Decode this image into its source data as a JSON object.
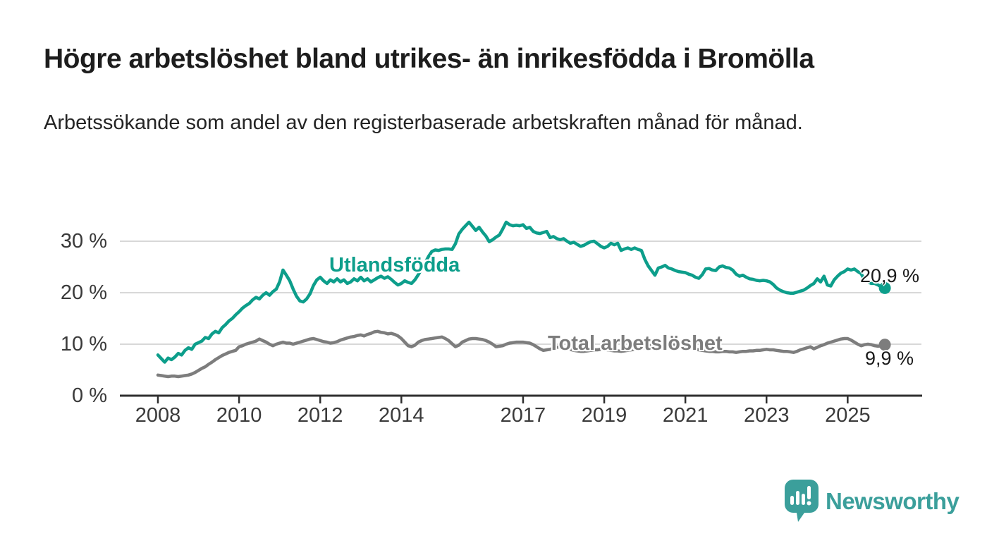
{
  "header": {
    "title": "Högre arbetslöshet bland utrikes- än inrikesfödda i Bromölla",
    "subtitle": "Arbetssökande som andel av den registerbaserade arbetskraften månad för månad."
  },
  "footer": {
    "brand": "Newsworthy",
    "brand_color": "#3b9f9b"
  },
  "chart_data": {
    "type": "line",
    "title": "Högre arbetslöshet bland utrikes- än inrikesfödda i Bromölla",
    "xlabel": "",
    "ylabel": "Arbetssökande som andel av den registerbaserade arbetskraften",
    "x_unit": "month",
    "x_start": "2008-01",
    "x_end": "2025-12",
    "ylim": [
      0,
      35
    ],
    "grid": true,
    "grid_color": "#d8d8d8",
    "axis_color": "#2f2f2f",
    "y_tick_values": [
      0,
      10,
      20,
      30
    ],
    "y_tick_labels": [
      "0 %",
      "10 %",
      "20 %",
      "30 %"
    ],
    "x_tick_labels": [
      "2008",
      "2010",
      "2012",
      "2014",
      "2017",
      "2019",
      "2021",
      "2023",
      "2025"
    ],
    "series": [
      {
        "name": "Utlandsfödda",
        "color": "#0d9e8b",
        "end_label": "20,9 %",
        "final_value": 20.9,
        "values": [
          7.9,
          7.2,
          6.5,
          7.3,
          7.0,
          7.5,
          8.2,
          7.9,
          8.8,
          9.3,
          9.0,
          10.0,
          10.3,
          10.6,
          11.3,
          11.1,
          12.0,
          12.5,
          12.2,
          13.2,
          13.8,
          14.5,
          15.0,
          15.7,
          16.3,
          17.0,
          17.5,
          17.9,
          18.6,
          19.1,
          18.8,
          19.5,
          20.0,
          19.5,
          20.2,
          20.7,
          22.1,
          24.4,
          23.4,
          22.3,
          20.7,
          19.3,
          18.4,
          18.2,
          18.8,
          19.8,
          21.4,
          22.5,
          23.0,
          22.3,
          21.8,
          22.5,
          22.1,
          22.7,
          22.1,
          22.5,
          21.8,
          22.1,
          22.7,
          22.3,
          23.0,
          22.3,
          22.7,
          22.1,
          22.5,
          22.9,
          23.2,
          22.8,
          23.1,
          22.6,
          22.0,
          21.5,
          21.8,
          22.3,
          22.0,
          21.8,
          22.5,
          23.5,
          24.6,
          25.8,
          27.0,
          28.0,
          28.3,
          28.2,
          28.4,
          28.5,
          28.5,
          28.4,
          29.5,
          31.4,
          32.3,
          33.0,
          33.7,
          32.9,
          32.1,
          32.7,
          31.8,
          31.0,
          29.9,
          30.3,
          30.8,
          31.2,
          32.4,
          33.7,
          33.2,
          33.0,
          33.1,
          33.0,
          33.2,
          32.5,
          32.7,
          31.9,
          31.6,
          31.5,
          31.7,
          31.9,
          30.7,
          30.9,
          30.5,
          30.3,
          30.5,
          30.0,
          29.6,
          29.8,
          29.4,
          29.0,
          29.2,
          29.6,
          29.9,
          30.0,
          29.5,
          29.0,
          28.7,
          29.0,
          29.6,
          29.3,
          29.6,
          28.2,
          28.5,
          28.7,
          28.4,
          28.7,
          28.4,
          28.2,
          26.5,
          25.2,
          24.3,
          23.4,
          24.8,
          25.0,
          25.3,
          24.8,
          24.6,
          24.3,
          24.1,
          24.0,
          23.9,
          23.6,
          23.4,
          23.0,
          22.8,
          23.5,
          24.6,
          24.7,
          24.4,
          24.3,
          25.0,
          25.2,
          24.9,
          24.8,
          24.4,
          23.6,
          23.2,
          23.4,
          23.0,
          22.7,
          22.6,
          22.4,
          22.3,
          22.4,
          22.3,
          22.1,
          21.6,
          20.9,
          20.5,
          20.2,
          20.0,
          19.9,
          19.9,
          20.1,
          20.3,
          20.5,
          20.9,
          21.4,
          21.8,
          22.7,
          22.1,
          23.2,
          21.5,
          21.3,
          22.5,
          23.2,
          23.8,
          24.1,
          24.6,
          24.4,
          24.6,
          24.1,
          23.7,
          22.5,
          22.1,
          21.8,
          21.8,
          21.5,
          21.1,
          20.9
        ]
      },
      {
        "name": "Total arbetslöshet",
        "color": "#7d7d7d",
        "end_label": "9,9 %",
        "final_value": 9.9,
        "values": [
          4.0,
          3.9,
          3.8,
          3.7,
          3.8,
          3.8,
          3.7,
          3.8,
          3.9,
          4.0,
          4.2,
          4.5,
          4.9,
          5.3,
          5.6,
          6.1,
          6.5,
          7.0,
          7.4,
          7.8,
          8.1,
          8.4,
          8.6,
          8.8,
          9.5,
          9.7,
          10.0,
          10.2,
          10.4,
          10.6,
          11.0,
          10.7,
          10.4,
          10.0,
          9.7,
          10.0,
          10.2,
          10.4,
          10.2,
          10.2,
          10.0,
          10.2,
          10.4,
          10.6,
          10.8,
          11.0,
          11.1,
          10.9,
          10.7,
          10.5,
          10.4,
          10.2,
          10.3,
          10.5,
          10.8,
          11.0,
          11.2,
          11.4,
          11.5,
          11.7,
          11.8,
          11.6,
          11.9,
          12.1,
          12.4,
          12.5,
          12.3,
          12.2,
          12.0,
          12.1,
          11.9,
          11.6,
          11.1,
          10.4,
          9.7,
          9.5,
          9.8,
          10.4,
          10.7,
          10.9,
          11.0,
          11.1,
          11.2,
          11.3,
          11.4,
          11.1,
          10.7,
          10.1,
          9.5,
          9.8,
          10.4,
          10.7,
          11.0,
          11.1,
          11.1,
          11.0,
          10.9,
          10.7,
          10.4,
          10.0,
          9.5,
          9.6,
          9.7,
          10.0,
          10.2,
          10.3,
          10.4,
          10.4,
          10.4,
          10.3,
          10.2,
          9.9,
          9.5,
          9.1,
          8.8,
          8.9,
          9.0,
          9.2,
          9.4,
          9.5,
          9.4,
          9.2,
          9.0,
          8.8,
          8.7,
          8.6,
          8.6,
          8.7,
          8.8,
          8.9,
          8.9,
          9.0,
          9.0,
          8.9,
          8.8,
          8.7,
          8.7,
          8.6,
          8.7,
          8.8,
          8.9,
          9.0,
          9.0,
          9.1,
          9.3,
          9.5,
          9.8,
          10.2,
          10.4,
          10.5,
          10.4,
          10.2,
          10.0,
          9.8,
          9.6,
          9.5,
          9.4,
          9.3,
          9.2,
          9.0,
          8.9,
          8.8,
          8.7,
          8.6,
          8.6,
          8.5,
          8.5,
          8.6,
          8.6,
          8.5,
          8.5,
          8.4,
          8.5,
          8.6,
          8.6,
          8.7,
          8.7,
          8.8,
          8.8,
          8.9,
          9.0,
          8.9,
          8.9,
          8.8,
          8.7,
          8.6,
          8.6,
          8.5,
          8.4,
          8.6,
          8.9,
          9.1,
          9.3,
          9.5,
          9.1,
          9.4,
          9.7,
          9.9,
          10.2,
          10.4,
          10.6,
          10.8,
          11.0,
          11.1,
          11.1,
          10.8,
          10.4,
          10.0,
          9.7,
          9.9,
          10.0,
          9.9,
          9.7,
          9.6,
          9.7,
          9.9
        ]
      }
    ],
    "legend_position": "inline-labels"
  }
}
